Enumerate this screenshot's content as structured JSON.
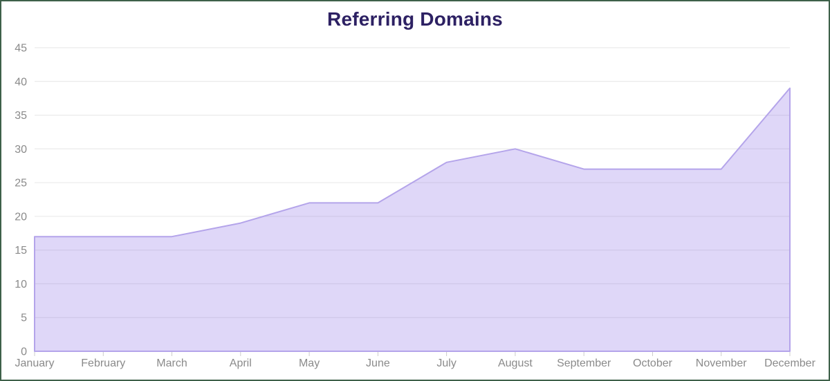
{
  "chart": {
    "title": "Referring Domains"
  },
  "chart_data": {
    "type": "area",
    "title": "Referring Domains",
    "categories": [
      "January",
      "February",
      "March",
      "April",
      "May",
      "June",
      "July",
      "August",
      "September",
      "October",
      "November",
      "December"
    ],
    "values": [
      17,
      17,
      17,
      19,
      22,
      22,
      28,
      30,
      27,
      27,
      27,
      39
    ],
    "xlabel": "",
    "ylabel": "",
    "ylim": [
      0,
      45
    ],
    "ytick_step": 5,
    "yticks": [
      0,
      5,
      10,
      15,
      20,
      25,
      30,
      35,
      40,
      45
    ],
    "grid": true,
    "legend_position": "none",
    "colors": {
      "area_fill": "rgba(139,110,231,0.28)",
      "area_line": "#b4a4ea",
      "gridline": "#e6e6e6",
      "axis_label": "#8a8a8a",
      "tick_mark": "#cccccc",
      "title": "#2d2163",
      "page_border": "#3e6049",
      "background": "#ffffff"
    }
  }
}
